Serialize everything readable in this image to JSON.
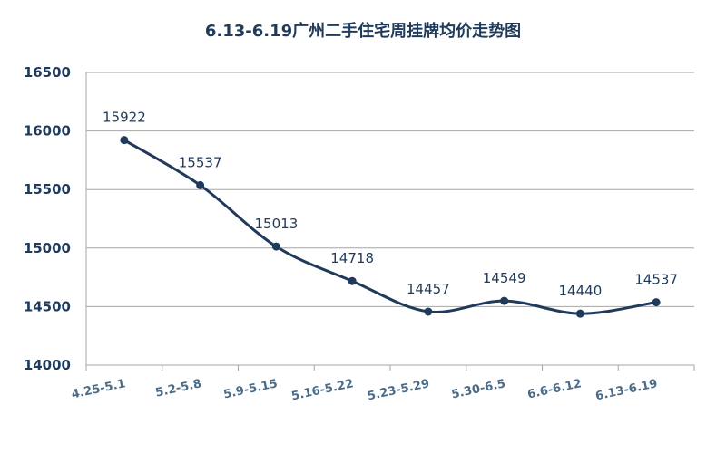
{
  "chart_data": {
    "type": "line",
    "title": "6.13-6.19广州二手住宅周挂牌均价走势图",
    "xlabel": "",
    "ylabel": "",
    "categories": [
      "4.25-5.1",
      "5.2-5.8",
      "5.9-5.15",
      "5.16-5.22",
      "5.23-5.29",
      "5.30-6.5",
      "6.6-6.12",
      "6.13-6.19"
    ],
    "values": [
      15922,
      15537,
      15013,
      14718,
      14457,
      14549,
      14440,
      14537
    ],
    "ylim": [
      14000,
      16500
    ],
    "yticks": [
      14000,
      14500,
      15000,
      15500,
      16000,
      16500
    ],
    "grid": true,
    "legend": "none",
    "colors": {
      "line": "#1f3a5a",
      "grid": "#a6a6a6",
      "title": "#1f3a5a",
      "tick": "#1f3a5a",
      "xtick": "#4a6b8a"
    }
  }
}
